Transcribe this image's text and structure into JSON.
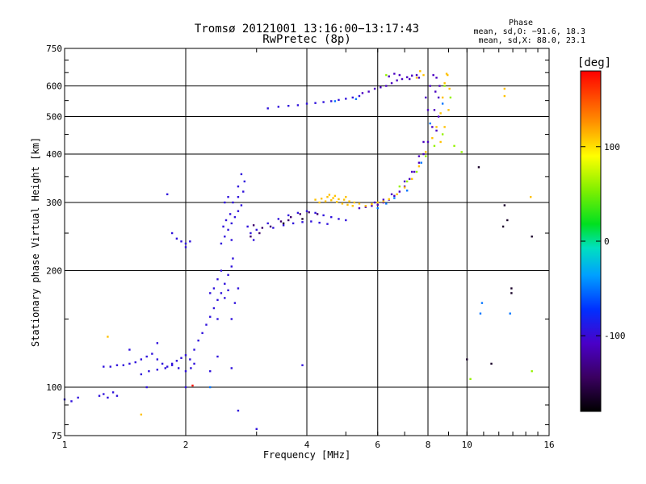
{
  "chart_data": {
    "type": "scatter",
    "title": "Tromsø 20121001 13:16:00−13:17:43",
    "subtitle": "RwPretec (8p)",
    "xlabel": "Frequency [MHz]",
    "ylabel": "Stationary phase Virtual Height [km]",
    "x_scale": "log",
    "y_scale": "log",
    "xlim": [
      1,
      16
    ],
    "ylim": [
      75,
      750
    ],
    "x_ticks": [
      1,
      2,
      4,
      6,
      8,
      10,
      16
    ],
    "y_ticks": [
      75,
      100,
      200,
      300,
      400,
      500,
      600,
      750
    ],
    "grid": true,
    "phase_legend": {
      "title": "Phase",
      "line_o": "mean, sd,O: −91.6, 18.3",
      "line_x": "mean, sd,X:  88.0, 23.1"
    },
    "colorbar": {
      "label": "[deg]",
      "range": [
        -180,
        180
      ],
      "ticks": [
        100,
        0,
        -100
      ]
    },
    "series": [
      {
        "color_value": -95,
        "points": [
          [
            1.0,
            93
          ],
          [
            1.04,
            92
          ],
          [
            1.08,
            94
          ],
          [
            1.22,
            95
          ],
          [
            1.25,
            96
          ],
          [
            1.32,
            97
          ],
          [
            1.35,
            95
          ],
          [
            1.28,
            94
          ],
          [
            1.25,
            113
          ],
          [
            1.3,
            113
          ],
          [
            1.35,
            114
          ],
          [
            1.4,
            114
          ],
          [
            1.45,
            115
          ],
          [
            1.5,
            116
          ],
          [
            1.55,
            118
          ],
          [
            1.6,
            120
          ],
          [
            1.65,
            122
          ],
          [
            1.7,
            118
          ],
          [
            1.75,
            115
          ],
          [
            1.8,
            113
          ],
          [
            1.85,
            115
          ],
          [
            1.9,
            117
          ],
          [
            1.95,
            119
          ],
          [
            2.0,
            121
          ],
          [
            2.05,
            118
          ],
          [
            2.1,
            115
          ],
          [
            1.55,
            108
          ],
          [
            1.62,
            110
          ],
          [
            1.7,
            111
          ],
          [
            1.78,
            112
          ],
          [
            1.85,
            114
          ],
          [
            1.92,
            112
          ],
          [
            2.0,
            110
          ],
          [
            2.06,
            112
          ],
          [
            2.1,
            125
          ],
          [
            2.15,
            132
          ],
          [
            2.2,
            138
          ],
          [
            2.25,
            145
          ],
          [
            2.3,
            152
          ],
          [
            2.35,
            160
          ],
          [
            2.4,
            168
          ],
          [
            2.45,
            175
          ],
          [
            2.5,
            185
          ],
          [
            2.55,
            195
          ],
          [
            2.6,
            205
          ],
          [
            2.62,
            215
          ],
          [
            2.45,
            200
          ],
          [
            2.4,
            190
          ],
          [
            2.35,
            180
          ],
          [
            2.5,
            170
          ],
          [
            2.55,
            178
          ],
          [
            2.65,
            165
          ],
          [
            2.7,
            180
          ],
          [
            2.3,
            175
          ],
          [
            2.4,
            150
          ],
          [
            2.6,
            150
          ],
          [
            2.45,
            235
          ],
          [
            2.5,
            245
          ],
          [
            2.55,
            255
          ],
          [
            2.6,
            265
          ],
          [
            2.65,
            275
          ],
          [
            2.7,
            285
          ],
          [
            2.75,
            295
          ],
          [
            2.48,
            260
          ],
          [
            2.52,
            270
          ],
          [
            2.58,
            280
          ],
          [
            2.62,
            300
          ],
          [
            2.7,
            310
          ],
          [
            2.78,
            320
          ],
          [
            2.8,
            340
          ],
          [
            2.75,
            355
          ],
          [
            2.7,
            330
          ],
          [
            2.85,
            260
          ],
          [
            2.9,
            250
          ],
          [
            2.95,
            240
          ],
          [
            2.5,
            300
          ],
          [
            2.55,
            310
          ],
          [
            2.6,
            240
          ],
          [
            1.85,
            250
          ],
          [
            1.9,
            242
          ],
          [
            1.95,
            238
          ],
          [
            2.0,
            235
          ],
          [
            2.05,
            238
          ],
          [
            2.0,
            230
          ],
          [
            1.8,
            315
          ],
          [
            3.0,
            255
          ],
          [
            3.2,
            265
          ],
          [
            3.4,
            272
          ],
          [
            3.6,
            278
          ],
          [
            3.8,
            282
          ],
          [
            4.0,
            285
          ],
          [
            4.2,
            282
          ],
          [
            4.4,
            278
          ],
          [
            4.6,
            275
          ],
          [
            4.8,
            272
          ],
          [
            5.0,
            270
          ],
          [
            3.3,
            258
          ],
          [
            3.5,
            262
          ],
          [
            3.7,
            265
          ],
          [
            3.9,
            267
          ],
          [
            4.1,
            268
          ],
          [
            4.3,
            266
          ],
          [
            4.5,
            264
          ],
          [
            3.2,
            525
          ],
          [
            3.4,
            530
          ],
          [
            3.6,
            533
          ],
          [
            3.8,
            535
          ],
          [
            4.0,
            540
          ],
          [
            4.2,
            542
          ],
          [
            4.4,
            545
          ],
          [
            4.6,
            548
          ],
          [
            4.8,
            552
          ],
          [
            5.0,
            556
          ],
          [
            5.2,
            560
          ],
          [
            5.4,
            565
          ],
          [
            2.6,
            112
          ],
          [
            3.0,
            78
          ],
          [
            2.7,
            87
          ],
          [
            3.9,
            114
          ],
          [
            2.4,
            120
          ],
          [
            2.0,
            100
          ],
          [
            2.3,
            110
          ],
          [
            1.6,
            100
          ],
          [
            1.45,
            125
          ],
          [
            1.7,
            130
          ]
        ]
      },
      {
        "color_value": -140,
        "points": [
          [
            3.05,
            250
          ],
          [
            3.25,
            260
          ],
          [
            3.45,
            268
          ],
          [
            3.65,
            275
          ],
          [
            3.85,
            280
          ],
          [
            4.05,
            283
          ],
          [
            4.25,
            280
          ],
          [
            2.9,
            245
          ],
          [
            3.6,
            270
          ],
          [
            3.1,
            258
          ],
          [
            2.95,
            262
          ]
        ]
      },
      {
        "color_value": -110,
        "points": [
          [
            5.4,
            290
          ],
          [
            5.6,
            292
          ],
          [
            5.8,
            294
          ],
          [
            6.0,
            296
          ],
          [
            6.2,
            300
          ],
          [
            6.4,
            305
          ],
          [
            6.6,
            312
          ],
          [
            6.8,
            320
          ],
          [
            7.0,
            330
          ],
          [
            7.2,
            345
          ],
          [
            7.4,
            360
          ],
          [
            7.6,
            380
          ],
          [
            7.8,
            400
          ],
          [
            8.0,
            430
          ],
          [
            8.2,
            470
          ],
          [
            8.3,
            520
          ],
          [
            8.35,
            580
          ],
          [
            8.4,
            630
          ],
          [
            8.0,
            520
          ],
          [
            7.9,
            560
          ],
          [
            8.1,
            600
          ],
          [
            8.25,
            640
          ],
          [
            7.0,
            340
          ],
          [
            7.3,
            360
          ],
          [
            7.6,
            395
          ],
          [
            7.8,
            430
          ],
          [
            6.5,
            315
          ],
          [
            6.2,
            305
          ],
          [
            5.9,
            300
          ],
          [
            8.4,
            460
          ],
          [
            8.5,
            500
          ],
          [
            8.5,
            560
          ],
          [
            8.55,
            600
          ],
          [
            5.5,
            575
          ],
          [
            5.7,
            580
          ],
          [
            5.9,
            590
          ],
          [
            6.1,
            595
          ],
          [
            6.3,
            600
          ],
          [
            6.5,
            610
          ],
          [
            6.7,
            620
          ],
          [
            6.9,
            625
          ],
          [
            7.1,
            632
          ],
          [
            7.3,
            638
          ],
          [
            7.5,
            640
          ],
          [
            6.4,
            635
          ],
          [
            6.6,
            645
          ],
          [
            6.8,
            640
          ],
          [
            7.2,
            625
          ],
          [
            7.6,
            630
          ]
        ]
      },
      {
        "color_value": 110,
        "points": [
          [
            4.2,
            305
          ],
          [
            4.35,
            307
          ],
          [
            4.5,
            310
          ],
          [
            4.65,
            308
          ],
          [
            4.8,
            306
          ],
          [
            4.95,
            305
          ],
          [
            5.1,
            302
          ],
          [
            5.25,
            300
          ],
          [
            5.4,
            298
          ],
          [
            4.3,
            300
          ],
          [
            4.45,
            302
          ],
          [
            4.6,
            304
          ],
          [
            4.75,
            301
          ],
          [
            4.9,
            298
          ],
          [
            5.05,
            296
          ],
          [
            5.2,
            294
          ],
          [
            4.55,
            314
          ],
          [
            4.7,
            312
          ],
          [
            5.0,
            310
          ],
          [
            5.6,
            294
          ],
          [
            5.8,
            297
          ],
          [
            6.0,
            300
          ],
          [
            6.2,
            302
          ],
          [
            6.4,
            306
          ],
          [
            6.7,
            315
          ],
          [
            7.0,
            328
          ],
          [
            7.3,
            345
          ],
          [
            7.6,
            372
          ],
          [
            7.9,
            405
          ],
          [
            8.2,
            440
          ],
          [
            8.4,
            470
          ],
          [
            8.6,
            510
          ],
          [
            8.7,
            560
          ],
          [
            8.8,
            610
          ],
          [
            8.9,
            645
          ],
          [
            8.6,
            430
          ],
          [
            8.8,
            470
          ],
          [
            9.0,
            520
          ],
          [
            9.05,
            590
          ],
          [
            8.95,
            640
          ],
          [
            7.5,
            630
          ],
          [
            7.8,
            640
          ],
          [
            7.65,
            655
          ],
          [
            12.4,
            590
          ],
          [
            12.4,
            565
          ],
          [
            1.28,
            135
          ],
          [
            1.55,
            85
          ],
          [
            14.4,
            310
          ]
        ]
      },
      {
        "color_value": 60,
        "points": [
          [
            6.8,
            330
          ],
          [
            7.1,
            340
          ],
          [
            7.5,
            360
          ],
          [
            7.9,
            395
          ],
          [
            8.3,
            420
          ],
          [
            8.7,
            450
          ],
          [
            9.3,
            420
          ],
          [
            8.8,
            600
          ],
          [
            9.1,
            560
          ],
          [
            6.3,
            640
          ],
          [
            9.7,
            405
          ],
          [
            10.2,
            105
          ],
          [
            14.5,
            110
          ]
        ]
      },
      {
        "color_value": -50,
        "points": [
          [
            6.0,
            290
          ],
          [
            6.3,
            298
          ],
          [
            6.6,
            308
          ],
          [
            7.1,
            322
          ],
          [
            7.7,
            380
          ],
          [
            8.1,
            480
          ],
          [
            8.7,
            540
          ],
          [
            4.7,
            548
          ],
          [
            5.3,
            555
          ],
          [
            10.8,
            155
          ],
          [
            10.9,
            165
          ],
          [
            12.8,
            155
          ],
          [
            2.3,
            100
          ]
        ]
      },
      {
        "color_value": -165,
        "points": [
          [
            12.4,
            295
          ],
          [
            12.6,
            270
          ],
          [
            12.9,
            175
          ],
          [
            14.5,
            245
          ],
          [
            10.7,
            370
          ],
          [
            12.3,
            260
          ],
          [
            11.5,
            115
          ],
          [
            10.0,
            118
          ],
          [
            12.9,
            180
          ],
          [
            3.5,
            265
          ],
          [
            3.9,
            272
          ]
        ]
      },
      {
        "color_value": 175,
        "points": [
          [
            2.08,
            101
          ]
        ]
      }
    ]
  }
}
